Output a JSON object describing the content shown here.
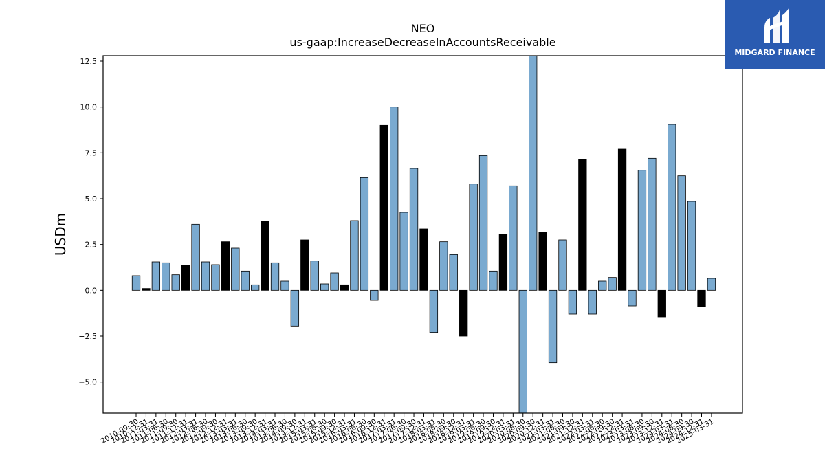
{
  "title_line1": "NEO",
  "title_line2": "us-gaap:IncreaseDecreaseInAccountsReceivable",
  "logo_text": "MIDGARD FINANCE",
  "colors": {
    "bar_blue": "#7aaad0",
    "bar_black": "#000000",
    "brand": "#2a5bb1"
  },
  "chart_data": {
    "type": "bar",
    "ylabel": "USDm",
    "ylim": [
      -6.7,
      12.8
    ],
    "yticks": [
      -5.0,
      -2.5,
      0.0,
      2.5,
      5.0,
      7.5,
      10.0,
      12.5
    ],
    "ytick_labels": [
      "−5.0",
      "−2.5",
      "0.0",
      "2.5",
      "5.0",
      "7.5",
      "10.0",
      "12.5"
    ],
    "categories": [
      "2010-09-30",
      "2010-12-31",
      "2011-03-31",
      "2011-06-30",
      "2011-09-30",
      "2011-12-31",
      "2012-03-31",
      "2012-06-30",
      "2012-09-30",
      "2012-12-31",
      "2013-03-31",
      "2013-06-30",
      "2013-09-30",
      "2013-12-31",
      "2014-03-31",
      "2014-06-30",
      "2014-09-30",
      "2014-12-31",
      "2015-03-31",
      "2015-06-30",
      "2015-09-30",
      "2015-12-31",
      "2016-03-31",
      "2016-06-30",
      "2016-09-30",
      "2016-12-31",
      "2017-03-31",
      "2017-06-30",
      "2017-09-30",
      "2017-12-31",
      "2018-03-31",
      "2018-06-30",
      "2018-09-30",
      "2018-12-31",
      "2019-03-31",
      "2019-06-30",
      "2019-09-30",
      "2019-12-31",
      "2020-03-31",
      "2020-06-30",
      "2020-09-30",
      "2020-12-31",
      "2021-03-31",
      "2021-06-30",
      "2021-09-30",
      "2021-12-31",
      "2022-03-31",
      "2022-06-30",
      "2022-09-30",
      "2022-12-31",
      "2023-03-31",
      "2023-06-30",
      "2023-09-30",
      "2023-12-31",
      "2024-03-31",
      "2024-06-30",
      "2024-09-30",
      "2024-12-31",
      "2025-03-31"
    ],
    "values": [
      0.8,
      0.1,
      1.55,
      1.5,
      0.85,
      1.35,
      3.6,
      1.55,
      1.4,
      2.65,
      2.3,
      1.05,
      0.3,
      3.75,
      1.5,
      0.5,
      -1.95,
      2.75,
      1.6,
      0.35,
      0.95,
      0.3,
      3.8,
      6.15,
      -0.55,
      9.0,
      10.0,
      4.25,
      6.65,
      3.35,
      -2.3,
      2.65,
      1.95,
      -2.5,
      5.8,
      7.35,
      1.05,
      3.05,
      5.7,
      -6.7,
      12.8,
      3.15,
      -3.95,
      2.75,
      -1.3,
      7.15,
      -1.3,
      0.5,
      0.7,
      7.7,
      -0.85,
      6.55,
      7.2,
      -1.45,
      9.05,
      6.25,
      4.85,
      -0.9,
      0.65
    ],
    "highlight": [
      false,
      true,
      false,
      false,
      false,
      true,
      false,
      false,
      false,
      true,
      false,
      false,
      false,
      true,
      false,
      false,
      false,
      true,
      false,
      false,
      false,
      true,
      false,
      false,
      false,
      true,
      false,
      false,
      false,
      true,
      false,
      false,
      false,
      true,
      false,
      false,
      false,
      true,
      false,
      false,
      false,
      true,
      false,
      false,
      false,
      true,
      false,
      false,
      false,
      true,
      false,
      false,
      false,
      true,
      false,
      false,
      false,
      true,
      false
    ]
  }
}
